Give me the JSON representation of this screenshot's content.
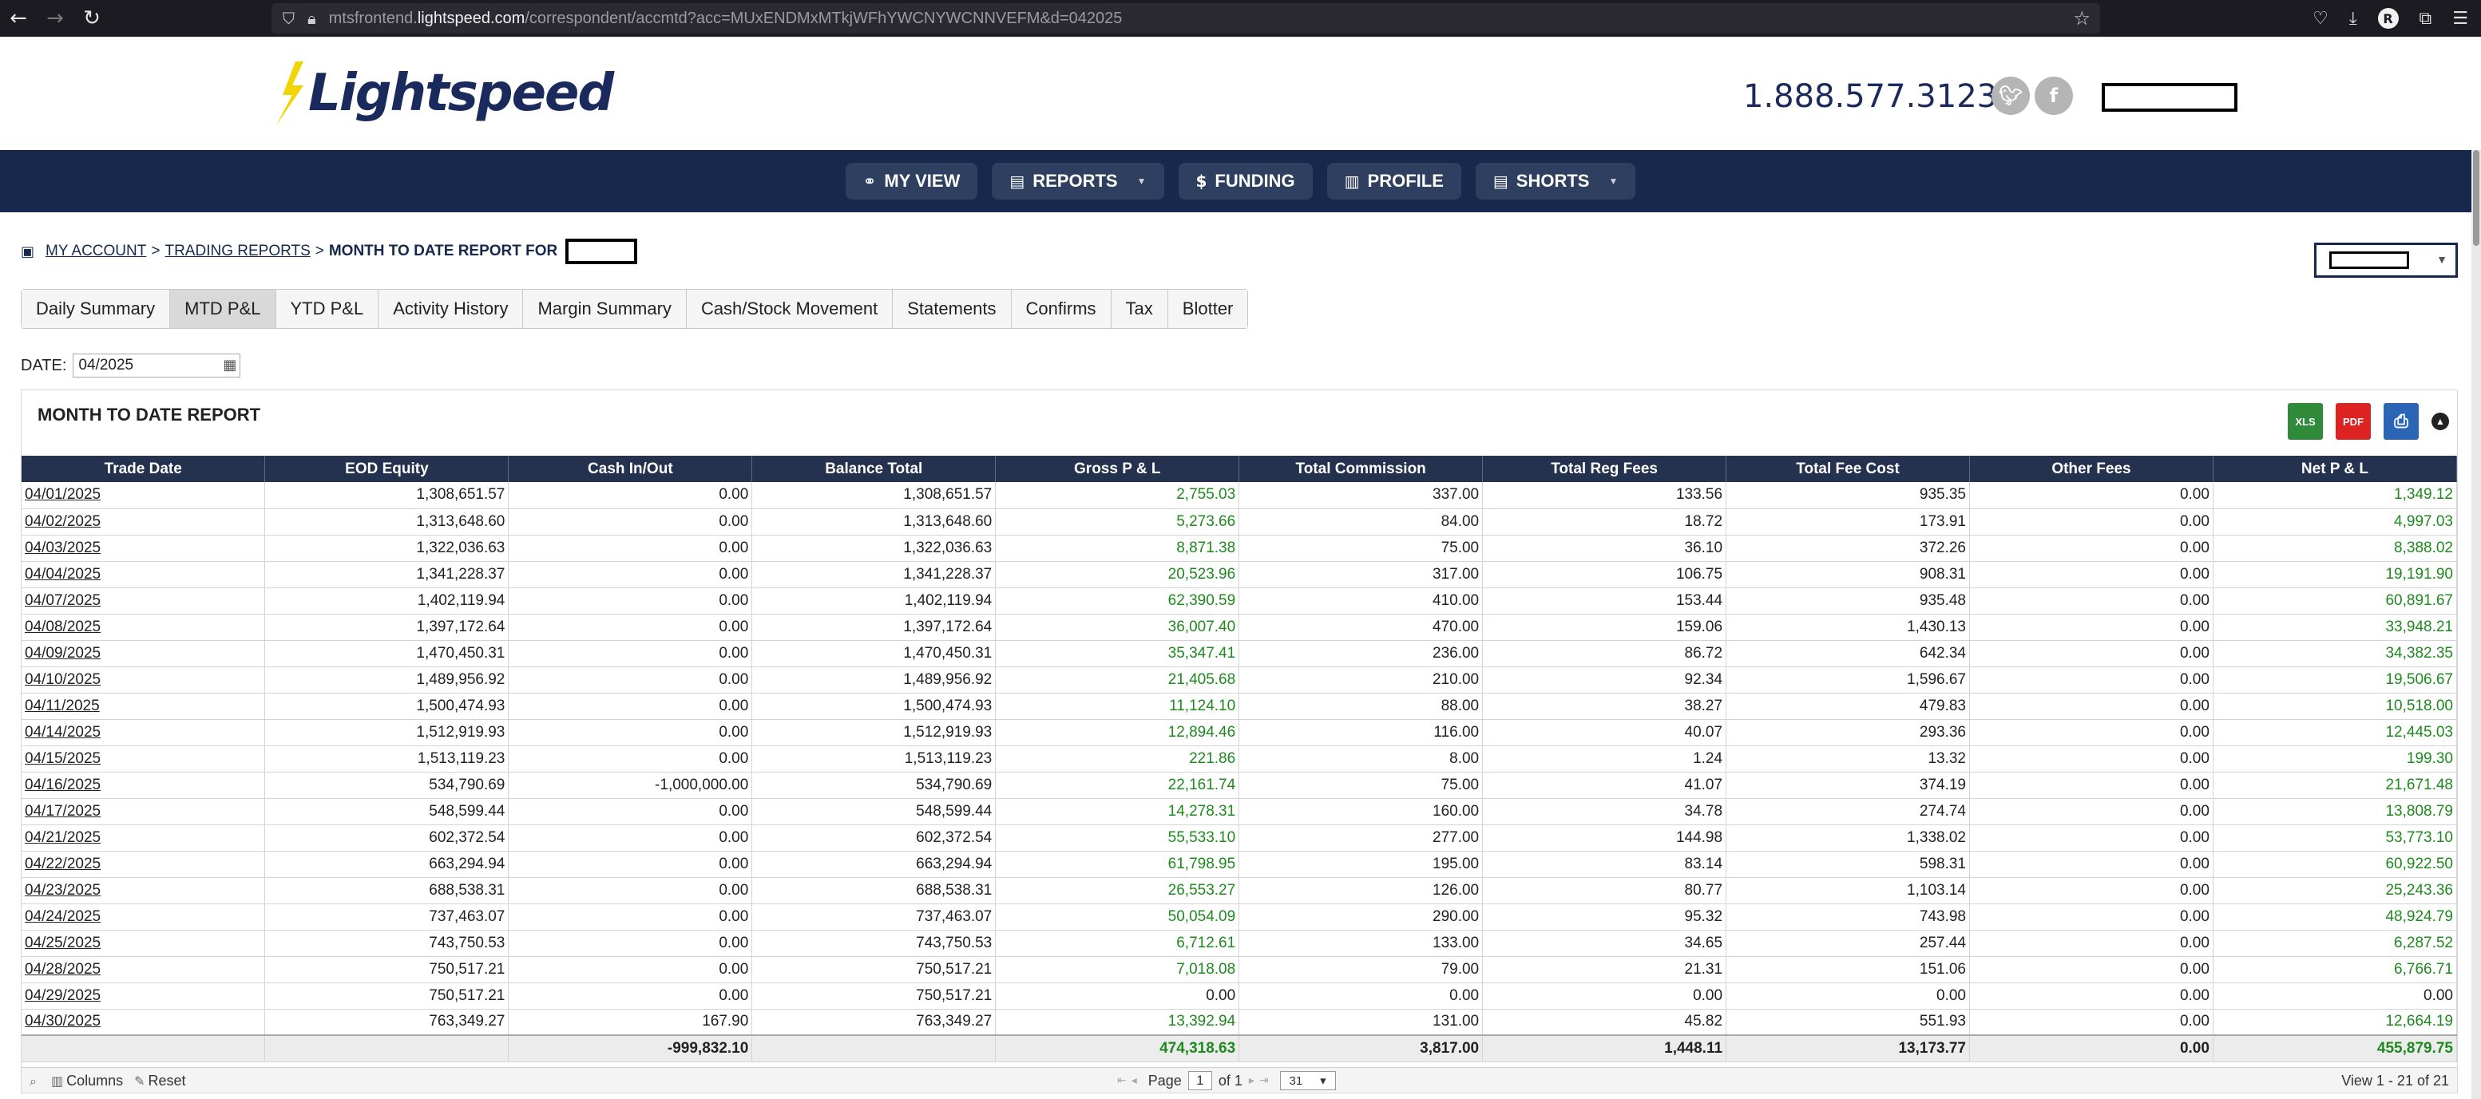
{
  "browser": {
    "url_prefix": "mtsfrontend.",
    "url_domain": "lightspeed.com",
    "url_path": "/correspondent/accmtd?acc=MUxENDMxMTkjWFhYWCNYWCNNVEFM&d=042025"
  },
  "header": {
    "logo_text": "Lightspeed",
    "phone": "1.888.577.3123"
  },
  "nav": {
    "items": [
      {
        "label": "MY VIEW",
        "icon": "binoculars-icon"
      },
      {
        "label": "REPORTS",
        "icon": "reports-icon",
        "dropdown": true
      },
      {
        "label": "FUNDING",
        "icon": "dollar-icon"
      },
      {
        "label": "PROFILE",
        "icon": "chart-icon"
      },
      {
        "label": "SHORTS",
        "icon": "shorts-icon",
        "dropdown": true
      }
    ]
  },
  "breadcrumb": {
    "my_account": "MY ACCOUNT",
    "trading_reports": "TRADING REPORTS",
    "current": "MONTH TO DATE REPORT FOR",
    "sep": ">"
  },
  "tabs": [
    {
      "label": "Daily Summary",
      "active": false
    },
    {
      "label": "MTD P&L",
      "active": true
    },
    {
      "label": "YTD P&L",
      "active": false
    },
    {
      "label": "Activity History",
      "active": false
    },
    {
      "label": "Margin Summary",
      "active": false
    },
    {
      "label": "Cash/Stock Movement",
      "active": false
    },
    {
      "label": "Statements",
      "active": false
    },
    {
      "label": "Confirms",
      "active": false
    },
    {
      "label": "Tax",
      "active": false
    },
    {
      "label": "Blotter",
      "active": false
    }
  ],
  "date_filter": {
    "label": "DATE:",
    "value": "04/2025"
  },
  "report": {
    "title": "MONTH TO DATE REPORT",
    "export": {
      "xls": "XLS",
      "pdf": "PDF"
    },
    "columns": [
      "Trade Date",
      "EOD Equity",
      "Cash In/Out",
      "Balance Total",
      "Gross P & L",
      "Total Commission",
      "Total Reg Fees",
      "Total Fee Cost",
      "Other Fees",
      "Net P & L"
    ],
    "rows": [
      [
        "04/01/2025",
        "1,308,651.57",
        "0.00",
        "1,308,651.57",
        "2,755.03",
        "337.00",
        "133.56",
        "935.35",
        "0.00",
        "1,349.12"
      ],
      [
        "04/02/2025",
        "1,313,648.60",
        "0.00",
        "1,313,648.60",
        "5,273.66",
        "84.00",
        "18.72",
        "173.91",
        "0.00",
        "4,997.03"
      ],
      [
        "04/03/2025",
        "1,322,036.63",
        "0.00",
        "1,322,036.63",
        "8,871.38",
        "75.00",
        "36.10",
        "372.26",
        "0.00",
        "8,388.02"
      ],
      [
        "04/04/2025",
        "1,341,228.37",
        "0.00",
        "1,341,228.37",
        "20,523.96",
        "317.00",
        "106.75",
        "908.31",
        "0.00",
        "19,191.90"
      ],
      [
        "04/07/2025",
        "1,402,119.94",
        "0.00",
        "1,402,119.94",
        "62,390.59",
        "410.00",
        "153.44",
        "935.48",
        "0.00",
        "60,891.67"
      ],
      [
        "04/08/2025",
        "1,397,172.64",
        "0.00",
        "1,397,172.64",
        "36,007.40",
        "470.00",
        "159.06",
        "1,430.13",
        "0.00",
        "33,948.21"
      ],
      [
        "04/09/2025",
        "1,470,450.31",
        "0.00",
        "1,470,450.31",
        "35,347.41",
        "236.00",
        "86.72",
        "642.34",
        "0.00",
        "34,382.35"
      ],
      [
        "04/10/2025",
        "1,489,956.92",
        "0.00",
        "1,489,956.92",
        "21,405.68",
        "210.00",
        "92.34",
        "1,596.67",
        "0.00",
        "19,506.67"
      ],
      [
        "04/11/2025",
        "1,500,474.93",
        "0.00",
        "1,500,474.93",
        "11,124.10",
        "88.00",
        "38.27",
        "479.83",
        "0.00",
        "10,518.00"
      ],
      [
        "04/14/2025",
        "1,512,919.93",
        "0.00",
        "1,512,919.93",
        "12,894.46",
        "116.00",
        "40.07",
        "293.36",
        "0.00",
        "12,445.03"
      ],
      [
        "04/15/2025",
        "1,513,119.23",
        "0.00",
        "1,513,119.23",
        "221.86",
        "8.00",
        "1.24",
        "13.32",
        "0.00",
        "199.30"
      ],
      [
        "04/16/2025",
        "534,790.69",
        "-1,000,000.00",
        "534,790.69",
        "22,161.74",
        "75.00",
        "41.07",
        "374.19",
        "0.00",
        "21,671.48"
      ],
      [
        "04/17/2025",
        "548,599.44",
        "0.00",
        "548,599.44",
        "14,278.31",
        "160.00",
        "34.78",
        "274.74",
        "0.00",
        "13,808.79"
      ],
      [
        "04/21/2025",
        "602,372.54",
        "0.00",
        "602,372.54",
        "55,533.10",
        "277.00",
        "144.98",
        "1,338.02",
        "0.00",
        "53,773.10"
      ],
      [
        "04/22/2025",
        "663,294.94",
        "0.00",
        "663,294.94",
        "61,798.95",
        "195.00",
        "83.14",
        "598.31",
        "0.00",
        "60,922.50"
      ],
      [
        "04/23/2025",
        "688,538.31",
        "0.00",
        "688,538.31",
        "26,553.27",
        "126.00",
        "80.77",
        "1,103.14",
        "0.00",
        "25,243.36"
      ],
      [
        "04/24/2025",
        "737,463.07",
        "0.00",
        "737,463.07",
        "50,054.09",
        "290.00",
        "95.32",
        "743.98",
        "0.00",
        "48,924.79"
      ],
      [
        "04/25/2025",
        "743,750.53",
        "0.00",
        "743,750.53",
        "6,712.61",
        "133.00",
        "34.65",
        "257.44",
        "0.00",
        "6,287.52"
      ],
      [
        "04/28/2025",
        "750,517.21",
        "0.00",
        "750,517.21",
        "7,018.08",
        "79.00",
        "21.31",
        "151.06",
        "0.00",
        "6,766.71"
      ],
      [
        "04/29/2025",
        "750,517.21",
        "0.00",
        "750,517.21",
        "0.00",
        "0.00",
        "0.00",
        "0.00",
        "0.00",
        "0.00"
      ],
      [
        "04/30/2025",
        "763,349.27",
        "167.90",
        "763,349.27",
        "13,392.94",
        "131.00",
        "45.82",
        "551.93",
        "0.00",
        "12,664.19"
      ]
    ],
    "totals": [
      "",
      "",
      "-999,832.10",
      "",
      "474,318.63",
      "3,817.00",
      "1,448.11",
      "13,173.77",
      "0.00",
      "455,879.75"
    ]
  },
  "pager": {
    "columns_label": "Columns",
    "reset_label": "Reset",
    "page_label": "Page",
    "page_value": "1",
    "of_label": "of 1",
    "rows_per_page": "31",
    "view_text": "View 1 - 21 of 21"
  },
  "colors": {
    "navy": "#16294d",
    "table_header": "#24324f",
    "positive": "#1e8a1e"
  }
}
